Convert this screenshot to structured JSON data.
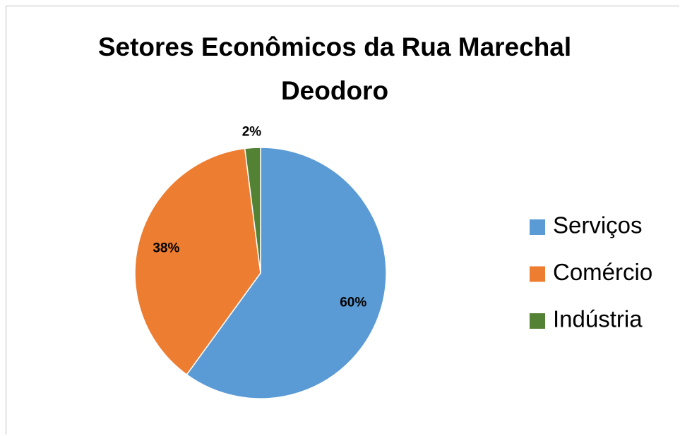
{
  "chart_data": {
    "type": "pie",
    "title": "Setores Econômicos da Rua Marechal Deodoro",
    "categories": [
      "Serviços",
      "Comércio",
      "Indústria"
    ],
    "values": [
      60,
      38,
      2
    ],
    "value_labels": [
      "60%",
      "38%",
      "2%"
    ],
    "colors": [
      "#5b9bd5",
      "#ed7d31",
      "#548235"
    ],
    "legend": "right"
  }
}
